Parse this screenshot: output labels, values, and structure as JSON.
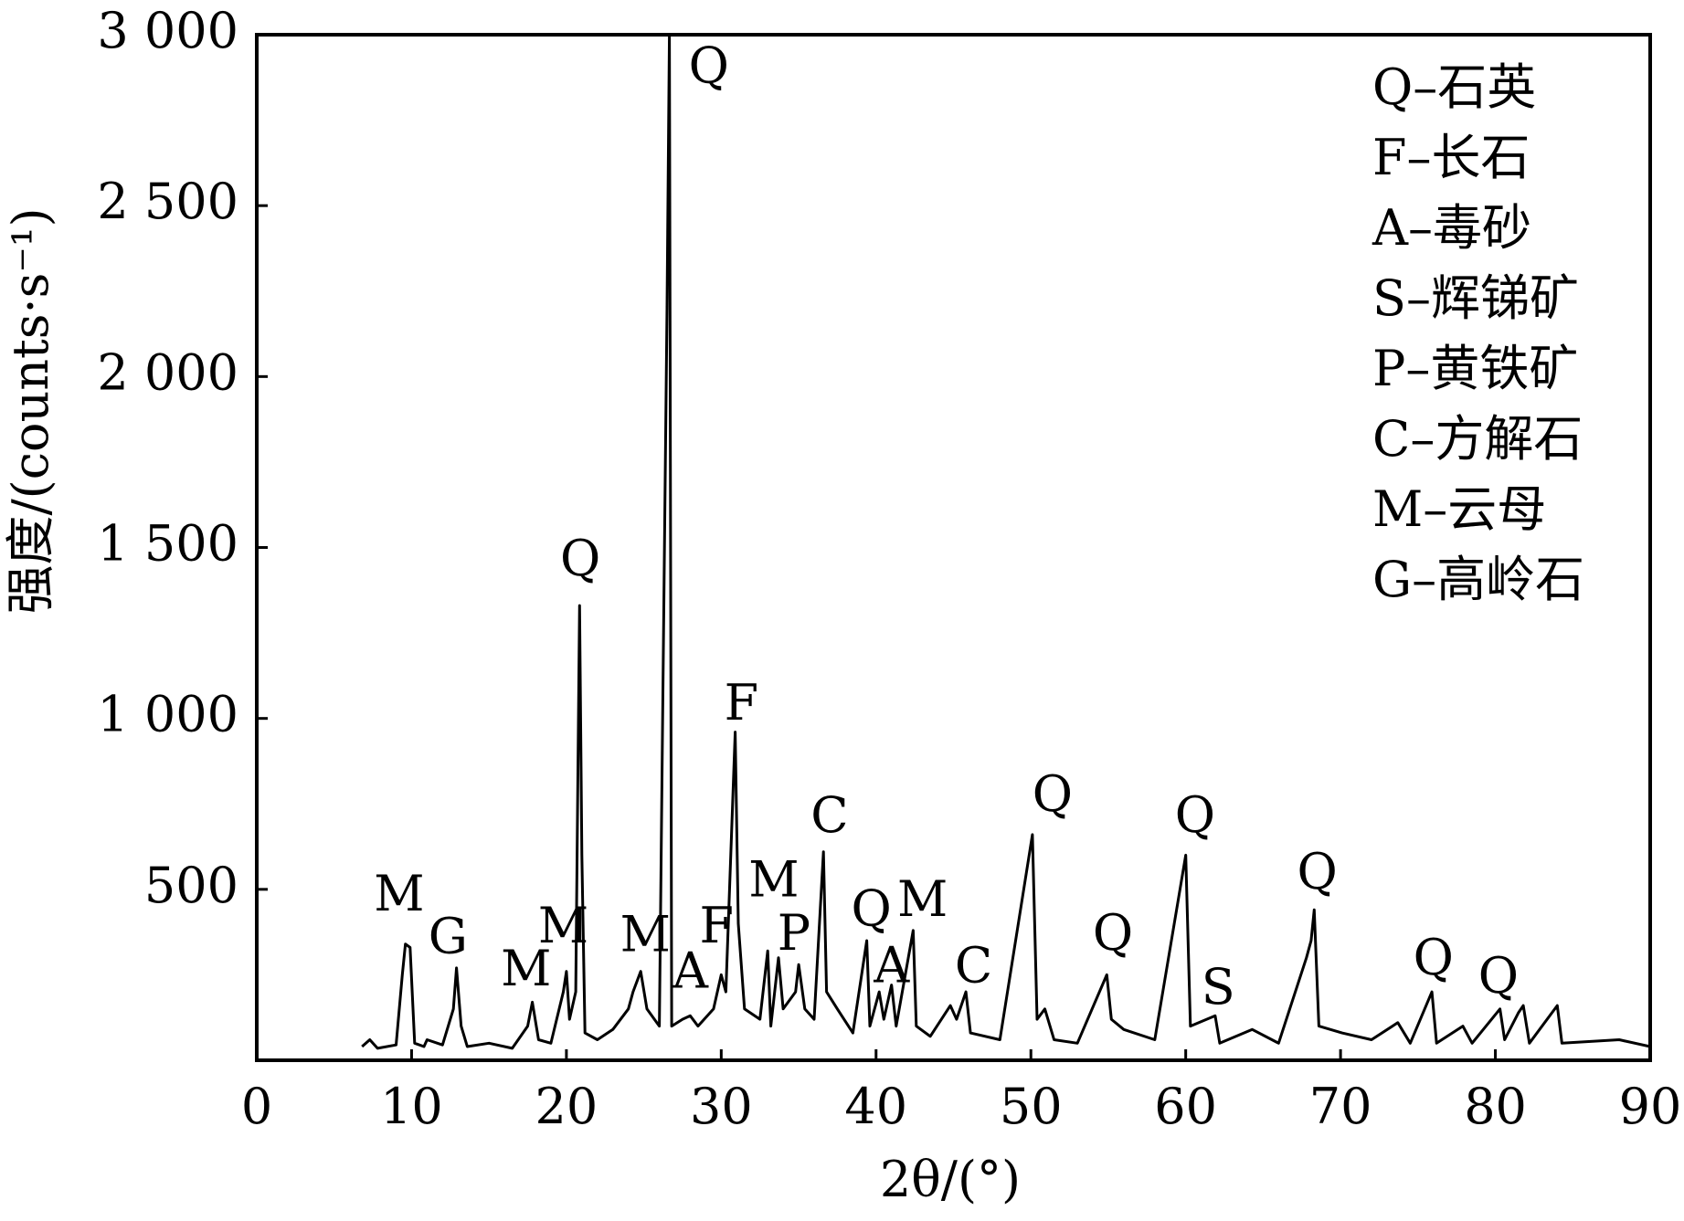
{
  "chart_data": {
    "type": "line",
    "y_label": "强度/(counts·s⁻¹)",
    "x_label": "2θ/(°)",
    "color": "#000000",
    "xlim": [
      0,
      90
    ],
    "xticks": [
      0,
      10,
      20,
      30,
      40,
      50,
      60,
      70,
      80,
      90
    ],
    "ylim": [
      0,
      3000
    ],
    "yticks": [
      500,
      {
        "value": 1000,
        "label": "1 000"
      },
      {
        "value": 1500,
        "label": "1 500"
      },
      {
        "value": 2000,
        "label": "2 000"
      },
      {
        "value": 2500,
        "label": "2 500"
      },
      {
        "value": 3000,
        "label": "3 000"
      }
    ],
    "x": [
      6.8,
      7.3,
      7.8,
      9.0,
      9.4,
      9.6,
      9.9,
      10.2,
      10.8,
      11.0,
      12.0,
      12.7,
      12.9,
      13.2,
      13.6,
      15,
      16.5,
      17.5,
      17.8,
      18.2,
      19,
      19.8,
      20.0,
      20.2,
      20.6,
      20.85,
      21.0,
      21.2,
      22,
      23,
      24,
      24.3,
      24.8,
      25.2,
      26.0,
      26.5,
      26.65,
      26.8,
      27.5,
      28,
      28.5,
      29.5,
      30.0,
      30.3,
      30.9,
      31.1,
      31.5,
      32.5,
      33.0,
      33.2,
      33.7,
      34,
      34.8,
      35.0,
      35.4,
      36.0,
      36.6,
      36.8,
      37.5,
      38.5,
      39.4,
      39.6,
      40.2,
      40.5,
      41.0,
      41.3,
      42.4,
      42.6,
      43.5,
      44.8,
      45.2,
      45.8,
      46.1,
      48,
      50.1,
      50.4,
      50.9,
      51.5,
      53,
      54.9,
      55.2,
      56,
      58,
      60.0,
      60.3,
      61.9,
      62.2,
      64.3,
      66,
      67.8,
      68.1,
      68.3,
      68.6,
      70.1,
      72,
      73.7,
      74.5,
      75.9,
      76.2,
      77.9,
      78.5,
      80.3,
      80.6,
      81.5,
      81.8,
      82.2,
      84,
      84.3,
      88,
      90
    ],
    "values": [
      40,
      60,
      35,
      45,
      250,
      340,
      330,
      50,
      40,
      60,
      45,
      150,
      270,
      100,
      40,
      50,
      35,
      100,
      170,
      60,
      50,
      200,
      260,
      120,
      200,
      1330,
      600,
      80,
      60,
      90,
      150,
      200,
      260,
      150,
      100,
      2200,
      3000,
      100,
      120,
      130,
      100,
      150,
      250,
      200,
      960,
      400,
      150,
      120,
      320,
      100,
      300,
      150,
      200,
      280,
      150,
      120,
      610,
      200,
      150,
      80,
      350,
      100,
      200,
      120,
      220,
      100,
      380,
      100,
      70,
      160,
      120,
      200,
      80,
      60,
      660,
      120,
      150,
      60,
      50,
      250,
      120,
      90,
      60,
      600,
      100,
      130,
      50,
      90,
      50,
      300,
      350,
      440,
      100,
      80,
      60,
      110,
      50,
      200,
      50,
      100,
      50,
      150,
      60,
      140,
      160,
      50,
      160,
      50,
      60,
      40
    ],
    "annotations": [
      {
        "text": "Q",
        "x": 29.2,
        "y": 2897
      },
      {
        "text": "Q",
        "x": 20.9,
        "y": 1456
      },
      {
        "text": "F",
        "x": 31.3,
        "y": 1034
      },
      {
        "text": "C",
        "x": 37.0,
        "y": 705
      },
      {
        "text": "Q",
        "x": 51.4,
        "y": 767
      },
      {
        "text": "Q",
        "x": 60.6,
        "y": 705
      },
      {
        "text": "Q",
        "x": 68.5,
        "y": 539
      },
      {
        "text": "M",
        "x": 9.2,
        "y": 476
      },
      {
        "text": "G",
        "x": 12.35,
        "y": 351
      },
      {
        "text": "M",
        "x": 17.4,
        "y": 257
      },
      {
        "text": "M",
        "x": 19.8,
        "y": 382
      },
      {
        "text": "M",
        "x": 25.1,
        "y": 357
      },
      {
        "text": "A",
        "x": 28.0,
        "y": 250
      },
      {
        "text": "F",
        "x": 29.7,
        "y": 382
      },
      {
        "text": "M",
        "x": 33.4,
        "y": 517
      },
      {
        "text": "P",
        "x": 34.7,
        "y": 360
      },
      {
        "text": "Q",
        "x": 39.7,
        "y": 432
      },
      {
        "text": "M",
        "x": 43.0,
        "y": 460
      },
      {
        "text": "A",
        "x": 41.0,
        "y": 266
      },
      {
        "text": "C",
        "x": 46.3,
        "y": 266
      },
      {
        "text": "Q",
        "x": 55.3,
        "y": 360
      },
      {
        "text": "S",
        "x": 62.1,
        "y": 203
      },
      {
        "text": "Q",
        "x": 76.0,
        "y": 288
      },
      {
        "text": "Q",
        "x": 80.2,
        "y": 235
      }
    ],
    "legend": [
      "Q–石英",
      "F–长石",
      "A–毒砂",
      "S–辉锑矿",
      "P–黄铁矿",
      "C–方解石",
      "M–云母",
      "G–高岭石"
    ],
    "legend_position": "top-right"
  }
}
